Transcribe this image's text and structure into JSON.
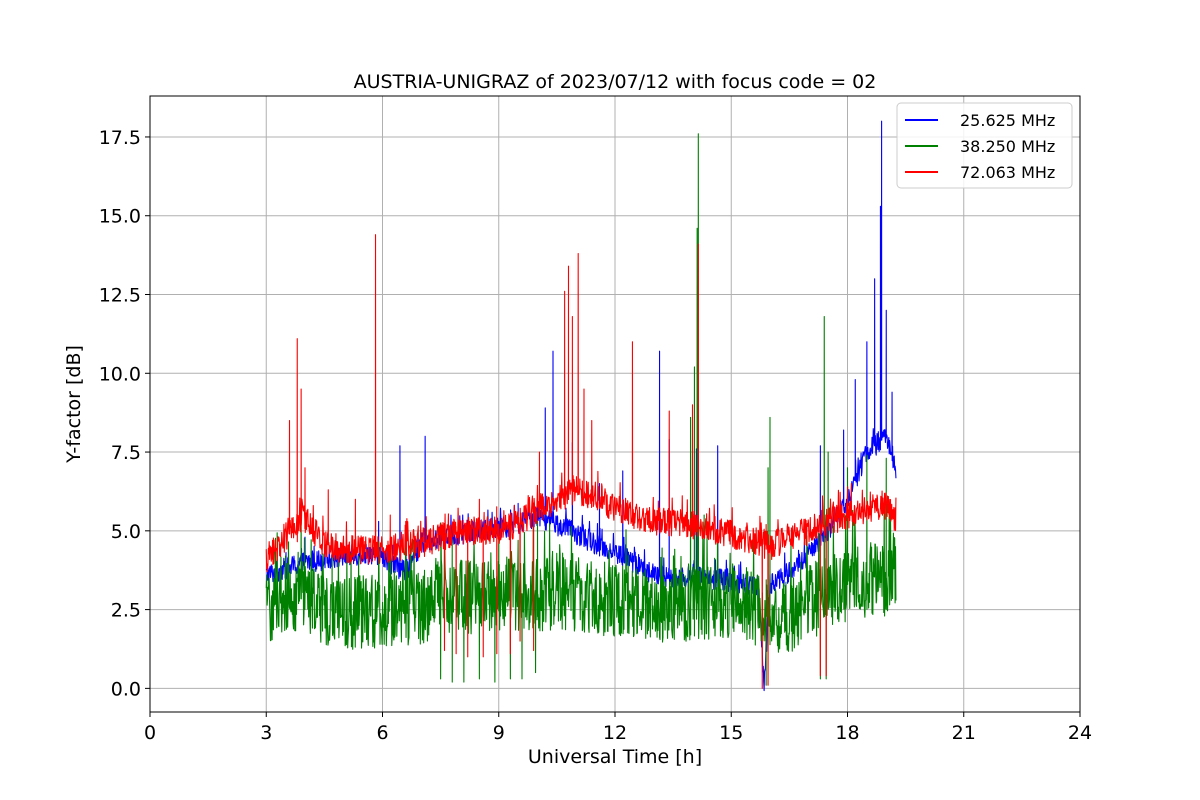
{
  "chart_data": {
    "type": "line",
    "title": "AUSTRIA-UNIGRAZ of 2023/07/12 with focus code = 02",
    "xlabel": "Universal Time [h]",
    "ylabel": "Y-factor [dB]",
    "xlim": [
      0,
      24
    ],
    "ylim": [
      -0.75,
      18.8
    ],
    "xticks": [
      0,
      3,
      6,
      9,
      12,
      15,
      18,
      21,
      24
    ],
    "xtick_labels": [
      "0",
      "3",
      "6",
      "9",
      "12",
      "15",
      "18",
      "21",
      "24"
    ],
    "yticks": [
      0,
      2.5,
      5,
      7.5,
      10,
      12.5,
      15,
      17.5
    ],
    "ytick_labels": [
      "0.0",
      "2.5",
      "5.0",
      "7.5",
      "10.0",
      "12.5",
      "15.0",
      "17.5"
    ],
    "grid": true,
    "legend_position": "top-right",
    "series": [
      {
        "name": "25.625 MHz",
        "color": "#0000ff",
        "base": [
          [
            3.0,
            3.6
          ],
          [
            4.0,
            4.0
          ],
          [
            5.0,
            4.2
          ],
          [
            5.8,
            4.3
          ],
          [
            6.2,
            4.0
          ],
          [
            6.6,
            3.7
          ],
          [
            7.0,
            4.6
          ],
          [
            7.5,
            4.8
          ],
          [
            8.5,
            5.0
          ],
          [
            9.5,
            5.2
          ],
          [
            10.0,
            5.5
          ],
          [
            10.5,
            5.2
          ],
          [
            11.5,
            4.6
          ],
          [
            12.5,
            4.0
          ],
          [
            13.0,
            3.6
          ],
          [
            13.5,
            3.5
          ],
          [
            14.0,
            3.6
          ],
          [
            14.5,
            3.5
          ],
          [
            15.0,
            3.4
          ],
          [
            15.7,
            3.3
          ],
          [
            15.85,
            0.1
          ],
          [
            16.0,
            3.3
          ],
          [
            16.5,
            3.7
          ],
          [
            17.0,
            4.2
          ],
          [
            17.5,
            5.0
          ],
          [
            18.0,
            6.0
          ],
          [
            18.5,
            7.5
          ],
          [
            19.0,
            8.0
          ],
          [
            19.25,
            7.0
          ]
        ],
        "spread": 0.35,
        "spikes": [
          [
            4.0,
            4.8
          ],
          [
            5.9,
            5.3
          ],
          [
            6.45,
            7.7
          ],
          [
            7.1,
            8.0
          ],
          [
            9.5,
            5.4
          ],
          [
            10.2,
            8.9
          ],
          [
            10.4,
            10.7
          ],
          [
            10.9,
            7.8
          ],
          [
            11.6,
            6.5
          ],
          [
            12.2,
            6.9
          ],
          [
            13.15,
            10.7
          ],
          [
            13.4,
            7.9
          ],
          [
            14.1,
            7.6
          ],
          [
            14.65,
            7.7
          ],
          [
            17.3,
            7.7
          ],
          [
            17.9,
            8.2
          ],
          [
            18.2,
            9.8
          ],
          [
            18.5,
            11.0
          ],
          [
            18.7,
            13.0
          ],
          [
            18.85,
            15.3
          ],
          [
            18.88,
            18.0
          ],
          [
            19.0,
            12.0
          ],
          [
            19.15,
            9.4
          ]
        ]
      },
      {
        "name": "38.250 MHz",
        "color": "#008000",
        "base": [
          [
            3.0,
            2.5
          ],
          [
            3.5,
            3.0
          ],
          [
            4.0,
            2.8
          ],
          [
            5.0,
            2.3
          ],
          [
            6.0,
            2.5
          ],
          [
            7.0,
            2.6
          ],
          [
            7.5,
            2.9
          ],
          [
            8.0,
            2.9
          ],
          [
            9.0,
            3.0
          ],
          [
            10.0,
            3.0
          ],
          [
            11.0,
            3.0
          ],
          [
            12.0,
            2.8
          ],
          [
            13.0,
            2.6
          ],
          [
            14.0,
            2.7
          ],
          [
            15.0,
            2.8
          ],
          [
            15.5,
            2.6
          ],
          [
            16.0,
            2.3
          ],
          [
            16.5,
            2.3
          ],
          [
            17.0,
            2.7
          ],
          [
            17.5,
            3.0
          ],
          [
            18.0,
            3.3
          ],
          [
            19.0,
            3.5
          ],
          [
            19.25,
            3.9
          ]
        ],
        "spread": 1.2,
        "spikes": [
          [
            3.9,
            6.0
          ],
          [
            4.7,
            4.8
          ],
          [
            9.0,
            4.8
          ],
          [
            10.0,
            5.3
          ],
          [
            13.95,
            8.6
          ],
          [
            14.05,
            10.2
          ],
          [
            14.12,
            14.6
          ],
          [
            14.15,
            17.6
          ],
          [
            14.3,
            5.5
          ],
          [
            15.95,
            7.0
          ],
          [
            16.0,
            8.6
          ],
          [
            17.4,
            11.8
          ],
          [
            17.5,
            7.5
          ],
          [
            18.0,
            7.0
          ],
          [
            18.5,
            7.4
          ],
          [
            19.0,
            7.3
          ]
        ],
        "dips": [
          [
            7.5,
            0.3
          ],
          [
            7.8,
            0.2
          ],
          [
            8.1,
            0.2
          ],
          [
            8.5,
            0.3
          ],
          [
            8.9,
            0.2
          ],
          [
            9.3,
            0.3
          ],
          [
            9.6,
            0.3
          ],
          [
            9.95,
            0.5
          ],
          [
            15.9,
            0.1
          ],
          [
            17.3,
            0.3
          ],
          [
            17.45,
            0.3
          ]
        ]
      },
      {
        "name": "72.063 MHz",
        "color": "#ff0000",
        "base": [
          [
            3.0,
            4.1
          ],
          [
            3.5,
            4.8
          ],
          [
            4.0,
            5.3
          ],
          [
            4.5,
            4.6
          ],
          [
            5.0,
            4.4
          ],
          [
            6.0,
            4.4
          ],
          [
            7.0,
            4.6
          ],
          [
            8.0,
            5.0
          ],
          [
            9.0,
            5.0
          ],
          [
            9.5,
            5.2
          ],
          [
            10.0,
            5.7
          ],
          [
            10.5,
            6.0
          ],
          [
            11.0,
            6.3
          ],
          [
            11.5,
            6.1
          ],
          [
            12.0,
            5.7
          ],
          [
            12.5,
            5.5
          ],
          [
            13.0,
            5.3
          ],
          [
            14.0,
            5.2
          ],
          [
            15.0,
            4.9
          ],
          [
            15.5,
            4.7
          ],
          [
            16.0,
            4.5
          ],
          [
            16.5,
            4.8
          ],
          [
            17.0,
            5.0
          ],
          [
            17.5,
            5.3
          ],
          [
            18.0,
            5.5
          ],
          [
            18.5,
            5.7
          ],
          [
            19.0,
            5.8
          ],
          [
            19.25,
            5.3
          ]
        ],
        "spread": 0.45,
        "spikes": [
          [
            3.6,
            8.5
          ],
          [
            3.8,
            11.1
          ],
          [
            3.9,
            9.5
          ],
          [
            4.0,
            7.0
          ],
          [
            4.6,
            6.3
          ],
          [
            5.3,
            6.0
          ],
          [
            5.82,
            14.4
          ],
          [
            6.2,
            5.5
          ],
          [
            6.6,
            5.3
          ],
          [
            8.5,
            6.0
          ],
          [
            10.05,
            7.5
          ],
          [
            10.7,
            12.6
          ],
          [
            10.8,
            13.4
          ],
          [
            10.9,
            11.8
          ],
          [
            11.05,
            13.8
          ],
          [
            11.2,
            9.5
          ],
          [
            11.4,
            8.5
          ],
          [
            12.45,
            11.0
          ],
          [
            13.4,
            8.8
          ],
          [
            14.0,
            9.0
          ],
          [
            14.15,
            14.1
          ],
          [
            15.9,
            5.2
          ],
          [
            18.1,
            6.5
          ]
        ],
        "dips": [
          [
            7.6,
            1.2
          ],
          [
            7.9,
            1.1
          ],
          [
            8.2,
            1.0
          ],
          [
            8.6,
            1.0
          ],
          [
            8.95,
            1.1
          ],
          [
            9.3,
            1.1
          ],
          [
            9.55,
            1.5
          ],
          [
            9.9,
            1.2
          ],
          [
            15.8,
            0.0
          ],
          [
            15.95,
            0.1
          ],
          [
            17.3,
            0.4
          ],
          [
            17.45,
            0.4
          ]
        ]
      }
    ]
  }
}
